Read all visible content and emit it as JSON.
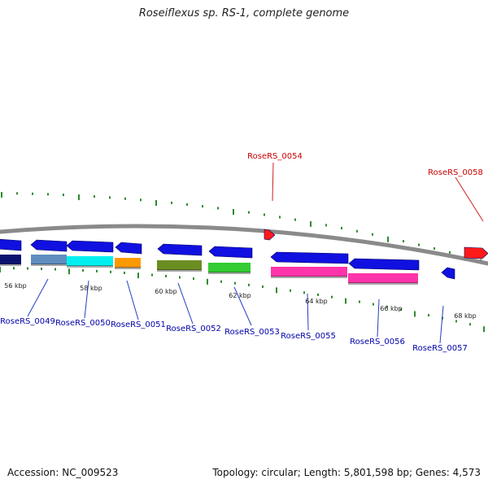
{
  "title": "Roseiflexus sp. RS-1, complete genome",
  "footer": {
    "accession": "Accession: NC_009523",
    "summary": "Topology: circular; Length: 5,801,598 bp; Genes: 4,573"
  },
  "colors": {
    "backbone": "#8a8a8a",
    "tick": "#2e8b2e",
    "forward_label": "#cc0000",
    "reverse_label": "#0000aa",
    "gene_blue": "#1010e0"
  },
  "kbp_labels": [
    "56 kbp",
    "58 kbp",
    "60 kbp",
    "62 kbp",
    "64 kbp",
    "66 kbp",
    "68 kbp"
  ],
  "genes": [
    {
      "label": "RoseRS_0049",
      "strand": "reverse"
    },
    {
      "label": "RoseRS_0050",
      "strand": "reverse"
    },
    {
      "label": "RoseRS_0051",
      "strand": "reverse"
    },
    {
      "label": "RoseRS_0052",
      "strand": "reverse"
    },
    {
      "label": "RoseRS_0053",
      "strand": "reverse"
    },
    {
      "label": "RoseRS_0054",
      "strand": "forward"
    },
    {
      "label": "RoseRS_0055",
      "strand": "reverse"
    },
    {
      "label": "RoseRS_0056",
      "strand": "reverse"
    },
    {
      "label": "RoseRS_0057",
      "strand": "reverse"
    },
    {
      "label": "RoseRS_0058",
      "strand": "forward"
    }
  ],
  "cog_colors": [
    "#0a1470",
    "#5f8fbf",
    "#00f0f0",
    "#ff9900",
    "#6b8e23",
    "#33cc33",
    "#ff33aa",
    "#ff33aa"
  ]
}
